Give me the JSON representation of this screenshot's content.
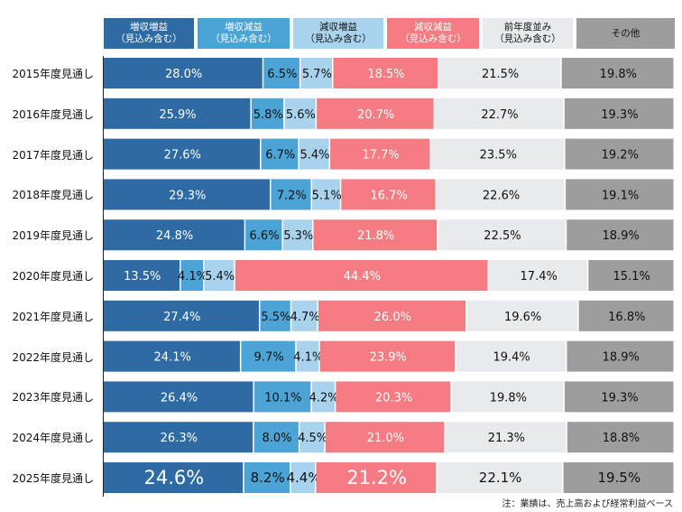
{
  "footnote": "注：業績は、売上高および経常利益ベース",
  "legend": [
    {
      "label": "増収増益\n（見込み含む）",
      "color": "#2e6aa3",
      "text_color": "#ffffff"
    },
    {
      "label": "増収減益\n（見込み含む）",
      "color": "#4ca3d5",
      "text_color": "#ffffff"
    },
    {
      "label": "減収増益\n（見込み含む）",
      "color": "#a9d3ec",
      "text_color": "#111111"
    },
    {
      "label": "減収減益\n（見込み含む）",
      "color": "#f57c82",
      "text_color": "#ffffff"
    },
    {
      "label": "前年度並み\n（見込み含む）",
      "color": "#e8eaed",
      "text_color": "#111111"
    },
    {
      "label": "その他",
      "color": "#9d9d9d",
      "text_color": "#111111"
    }
  ],
  "chart_data": {
    "type": "bar",
    "orientation": "horizontal",
    "stacked": true,
    "percent_stacked": true,
    "categories": [
      "2015年度見通し",
      "2016年度見通し",
      "2017年度見通し",
      "2018年度見通し",
      "2019年度見通し",
      "2020年度見通し",
      "2021年度見通し",
      "2022年度見通し",
      "2023年度見通し",
      "2024年度見通し",
      "2025年度見通し"
    ],
    "series": [
      {
        "name": "増収増益（見込み含む）",
        "values": [
          28.0,
          25.9,
          27.6,
          29.3,
          24.8,
          13.5,
          27.4,
          24.1,
          26.4,
          26.3,
          24.6
        ],
        "labels": [
          "28.0%",
          "25.9%",
          "27.6%",
          "29.3%",
          "24.8%",
          "13.5%",
          "27.4%",
          "24.1%",
          "26.4%",
          "26.3%",
          "24.6%"
        ]
      },
      {
        "name": "増収減益（見込み含む）",
        "values": [
          6.5,
          5.8,
          6.7,
          7.2,
          6.6,
          4.1,
          5.5,
          9.7,
          10.1,
          8.0,
          8.2
        ],
        "labels": [
          "6.5%",
          "5.8%",
          "6.7%",
          "7.2%",
          "6.6%",
          "4.1%",
          "5.5%",
          "9.7%",
          "10.1%",
          "8.0%",
          "8.2%"
        ]
      },
      {
        "name": "減収増益（見込み含む）",
        "values": [
          5.7,
          5.6,
          5.4,
          5.1,
          5.3,
          5.4,
          4.7,
          4.1,
          4.2,
          4.5,
          4.4
        ],
        "labels": [
          "5.7%",
          "5.6%",
          "5.4%",
          "5.1%",
          "5.3%",
          "5.4%",
          "4.7%",
          "4.1%",
          "4.2%",
          "4.5%",
          "4.4%"
        ]
      },
      {
        "name": "減収減益（見込み含む）",
        "values": [
          18.5,
          20.7,
          17.7,
          16.7,
          21.8,
          44.4,
          26.0,
          23.9,
          20.3,
          21.0,
          21.2
        ],
        "labels": [
          "18.5%",
          "20.7%",
          "17.7%",
          "16.7%",
          "21.8%",
          "44.4%",
          "26.0%",
          "23.9%",
          "20.3%",
          "21.0%",
          "21.2%"
        ]
      },
      {
        "name": "前年度並み（見込み含む）",
        "values": [
          21.5,
          22.7,
          23.5,
          22.6,
          22.5,
          17.4,
          19.6,
          19.4,
          19.8,
          21.3,
          22.1
        ],
        "labels": [
          "21.5%",
          "22.7%",
          "23.5%",
          "22.6%",
          "22.5%",
          "17.4%",
          "19.6%",
          "19.4%",
          "19.8%",
          "21.3%",
          "22.1%"
        ]
      },
      {
        "name": "その他",
        "values": [
          19.8,
          19.3,
          19.2,
          19.1,
          18.9,
          15.1,
          16.8,
          18.9,
          19.3,
          18.8,
          19.5
        ],
        "labels": [
          "19.8%",
          "19.3%",
          "19.2%",
          "19.1%",
          "18.9%",
          "15.1%",
          "16.8%",
          "18.9%",
          "19.3%",
          "18.8%",
          "19.5%"
        ]
      }
    ],
    "emphasized_category": "2025年度見通し",
    "legend_position": "top",
    "grid": false
  }
}
